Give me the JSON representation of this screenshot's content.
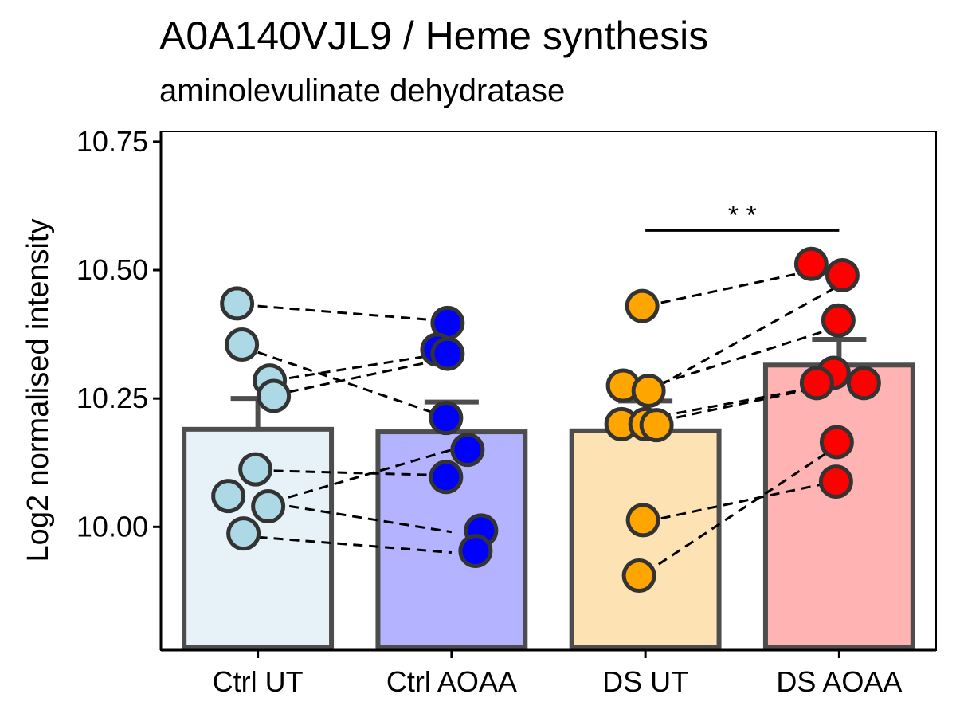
{
  "chart_data": {
    "type": "bar",
    "title": "A0A140VJL9 / Heme synthesis",
    "subtitle": "aminolevulinate dehydratase",
    "xlabel": "",
    "ylabel": "Log2 normalised intensity",
    "ylim": [
      9.76,
      10.77
    ],
    "yticks": [
      10.0,
      10.25,
      10.5,
      10.75
    ],
    "ytick_labels": [
      "10.00",
      "10.25",
      "10.50",
      "10.75"
    ],
    "categories": [
      "Ctrl UT",
      "Ctrl AOAA",
      "DS UT",
      "DS AOAA"
    ],
    "bar_values": [
      10.19,
      10.185,
      10.187,
      10.315
    ],
    "error_upper": [
      10.25,
      10.243,
      10.245,
      10.365
    ],
    "bar_fill_colors": [
      "#e6f1f8",
      "#b3b3ff",
      "#fde3b4",
      "#ffb3b3"
    ],
    "point_colors": [
      "#add8e6",
      "#0000ff",
      "#ffa500",
      "#ff0000"
    ],
    "grid": false,
    "legend": "none",
    "points": [
      [
        10.435,
        10.355,
        10.285,
        10.255,
        10.112,
        10.06,
        10.04,
        9.987
      ],
      [
        10.397,
        10.345,
        10.337,
        10.212,
        10.15,
        10.097,
        9.993,
        9.953
      ],
      [
        10.43,
        10.275,
        10.265,
        10.2,
        10.2,
        10.198,
        10.013,
        9.905
      ],
      [
        10.512,
        10.49,
        10.402,
        10.3,
        10.28,
        10.28,
        10.165,
        10.088
      ]
    ],
    "pairs": [
      [
        10.43,
        10.4
      ],
      [
        10.34,
        10.21
      ],
      [
        10.28,
        10.34
      ],
      [
        10.25,
        10.33
      ],
      [
        10.11,
        10.1
      ],
      [
        10.04,
        10.15
      ],
      [
        10.05,
        9.99
      ],
      [
        9.98,
        9.95
      ],
      [
        10.43,
        10.51
      ],
      [
        10.27,
        10.39
      ],
      [
        10.26,
        10.47
      ],
      [
        10.21,
        10.28
      ],
      [
        10.2,
        10.28
      ],
      [
        10.01,
        10.09
      ],
      [
        9.91,
        10.16
      ]
    ],
    "pair_groups": [
      [
        0,
        0,
        0,
        0,
        0,
        0,
        0,
        0,
        2,
        2,
        2,
        2,
        2,
        2,
        2
      ],
      [
        1,
        1,
        1,
        1,
        1,
        1,
        1,
        1,
        3,
        3,
        3,
        3,
        3,
        3,
        3
      ]
    ],
    "significance": {
      "from": "DS UT",
      "to": "DS AOAA",
      "y": 10.577,
      "label": "* *"
    }
  }
}
